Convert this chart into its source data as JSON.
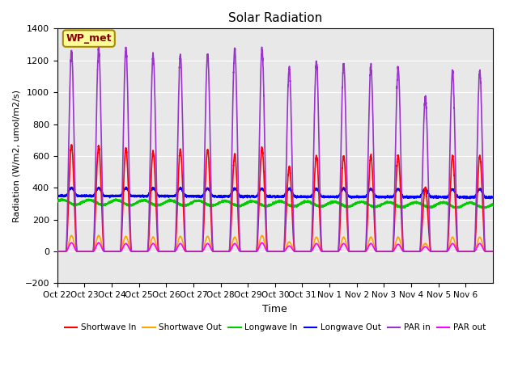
{
  "title": "Solar Radiation",
  "ylabel": "Radiation (W/m2, umol/m2/s)",
  "xlabel": "Time",
  "ylim": [
    -200,
    1400
  ],
  "yticks": [
    -200,
    0,
    200,
    400,
    600,
    800,
    1000,
    1200,
    1400
  ],
  "x_tick_labels": [
    "Oct 22",
    "Oct 23",
    "Oct 24",
    "Oct 25",
    "Oct 26",
    "Oct 27",
    "Oct 28",
    "Oct 29",
    "Oct 30",
    "Oct 31",
    "Nov 1",
    "Nov 2",
    "Nov 3",
    "Nov 4",
    "Nov 5",
    "Nov 6"
  ],
  "annotation_text": "WP_met",
  "annotation_color": "#8B0000",
  "annotation_bg": "#FFFF99",
  "bg_color": "#E8E8E8",
  "legend_entries": [
    "Shortwave In",
    "Shortwave Out",
    "Longwave In",
    "Longwave Out",
    "PAR in",
    "PAR out"
  ],
  "legend_colors": [
    "#FF0000",
    "#FFA500",
    "#00CC00",
    "#0000FF",
    "#9933CC",
    "#FF00FF"
  ],
  "line_width": 1.2,
  "n_days": 16,
  "points_per_day": 288,
  "shortwave_in_peaks": [
    670,
    660,
    650,
    625,
    640,
    640,
    610,
    650,
    530,
    600,
    600,
    600,
    600,
    400,
    600,
    600
  ],
  "shortwave_out_peaks": [
    100,
    100,
    95,
    90,
    95,
    95,
    90,
    100,
    60,
    90,
    90,
    90,
    90,
    50,
    90,
    90
  ],
  "longwave_in_base": 310,
  "longwave_out_base": 350,
  "par_in_peaks": [
    1260,
    1270,
    1280,
    1230,
    1230,
    1240,
    1270,
    1270,
    1150,
    1190,
    1180,
    1160,
    1150,
    970,
    1130,
    1130
  ],
  "par_out_peaks": [
    55,
    55,
    50,
    50,
    50,
    50,
    50,
    55,
    35,
    50,
    50,
    50,
    45,
    30,
    50,
    50
  ]
}
